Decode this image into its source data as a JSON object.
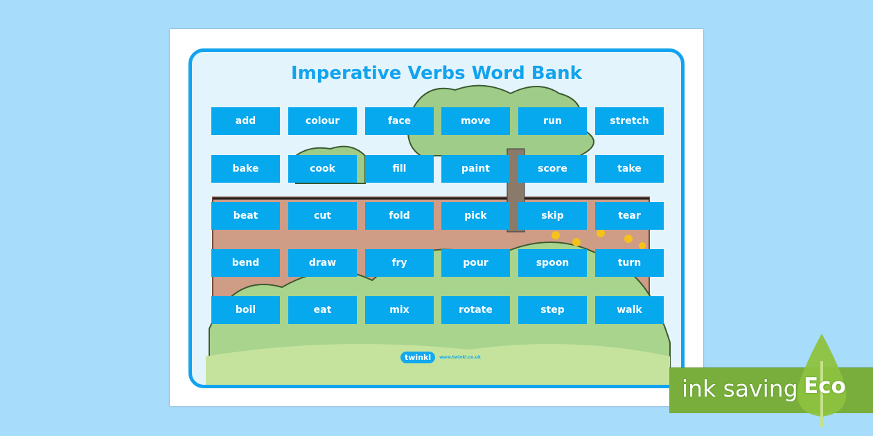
{
  "title": "Imperative Verbs Word Bank",
  "words": [
    [
      "add",
      "colour",
      "face",
      "move",
      "run",
      "stretch"
    ],
    [
      "bake",
      "cook",
      "fill",
      "paint",
      "score",
      "take"
    ],
    [
      "beat",
      "cut",
      "fold",
      "pick",
      "skip",
      "tear"
    ],
    [
      "bend",
      "draw",
      "fry",
      "pour",
      "spoon",
      "turn"
    ],
    [
      "boil",
      "eat",
      "mix",
      "rotate",
      "step",
      "walk"
    ]
  ],
  "logo": {
    "name": "twinkl",
    "url": "www.twinkl.co.uk"
  },
  "eco_banner": {
    "text": "ink saving",
    "badge": "Eco"
  },
  "colors": {
    "background": "#a8dcfb",
    "accent": "#12a3ef",
    "word_tile": "#06a8ee",
    "eco_green": "#7aae3c"
  }
}
